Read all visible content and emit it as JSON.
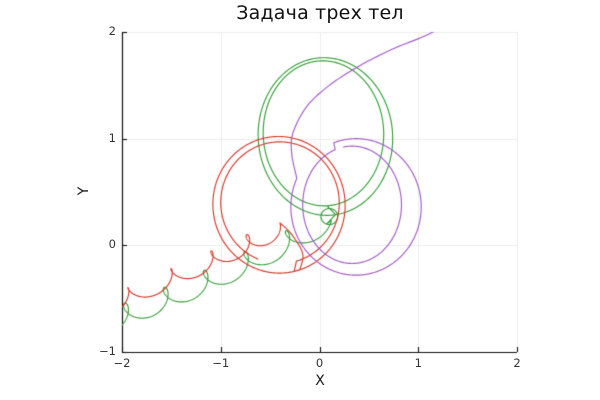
{
  "chart_data": {
    "type": "line",
    "title": "Задача трех тел",
    "xlabel": "X",
    "ylabel": "Y",
    "xlim": [
      -2,
      2
    ],
    "ylim": [
      -1,
      2
    ],
    "grid": true,
    "legend": "none",
    "background": "#ffffff",
    "grid_color": "#ededed",
    "spine_color": "#111111",
    "tick_label_color": "#333333",
    "axes": {
      "x": {
        "ticks": [
          {
            "v": -2,
            "label": "−2"
          },
          {
            "v": -1,
            "label": "−1"
          },
          {
            "v": 0,
            "label": "0"
          },
          {
            "v": 1,
            "label": "1"
          },
          {
            "v": 2,
            "label": "2"
          }
        ]
      },
      "y": {
        "ticks": [
          {
            "v": -1,
            "label": "−1"
          },
          {
            "v": 0,
            "label": "0"
          },
          {
            "v": 1,
            "label": "1"
          },
          {
            "v": 2,
            "label": "2"
          }
        ]
      }
    },
    "series": [
      {
        "name": "body-green",
        "color": "#3a9e3c",
        "line_width": 1.15,
        "segments": [
          {
            "t": "troch",
            "p0": [
              -2.16,
              -0.72
            ],
            "c1": [
              -1.45,
              -0.47
            ],
            "c2": [
              -0.75,
              -0.2
            ],
            "p1": [
              0.02,
              0.2
            ],
            "r": 0.105,
            "turns": 5.3,
            "phase": 270
          },
          {
            "t": "ell",
            "c": [
              0.1,
              0.27
            ],
            "rx": 0.085,
            "ry": 0.075,
            "rot": 0,
            "a0": 250,
            "a1": 610
          },
          {
            "t": "ell",
            "c": [
              0.06,
              1.02
            ],
            "rx": 0.68,
            "ry": 0.74,
            "rot": 8,
            "a0": -90,
            "a1": 270
          },
          {
            "t": "ell",
            "c": [
              0.04,
              1.05
            ],
            "rx": 0.61,
            "ry": 0.68,
            "rot": 3,
            "a0": 270,
            "a1": 630
          }
        ]
      },
      {
        "name": "body-red",
        "color": "#d23b2c",
        "line_width": 1.15,
        "segments": [
          {
            "t": "troch",
            "p0": [
              -2.16,
              -0.58
            ],
            "c1": [
              -1.5,
              -0.3
            ],
            "c2": [
              -0.85,
              -0.06
            ],
            "p1": [
              -0.45,
              0.14
            ],
            "r": 0.085,
            "turns": 4.4,
            "phase": 270
          },
          {
            "t": "pts",
            "pts": [
              [
                -0.4,
                0.21
              ],
              [
                -0.28,
                0.1
              ],
              [
                -0.17,
                -0.08
              ],
              [
                -0.2,
                -0.23
              ]
            ]
          },
          {
            "t": "ell",
            "c": [
              -0.41,
              0.38
            ],
            "rx": 0.67,
            "ry": 0.64,
            "rot": -5,
            "a0": -72,
            "a1": 288
          },
          {
            "t": "ell",
            "c": [
              -0.4,
              0.4
            ],
            "rx": 0.6,
            "ry": 0.57,
            "rot": -2,
            "a0": 288,
            "a1": 610
          }
        ]
      },
      {
        "name": "body-purple",
        "color": "#a25cc6",
        "line_width": 1.15,
        "segments": [
          {
            "t": "ell",
            "c": [
              0.33,
              0.38
            ],
            "rx": 0.5,
            "ry": 0.55,
            "rot": 0,
            "a0": 100,
            "a1": -250
          },
          {
            "t": "ell",
            "c": [
              0.37,
              0.36
            ],
            "rx": 0.66,
            "ry": 0.64,
            "rot": 0,
            "a0": -250,
            "a1": -565
          },
          {
            "t": "pts",
            "pts": [
              [
                -0.23,
                0.63
              ],
              [
                -0.28,
                0.85
              ],
              [
                -0.27,
                1.05
              ],
              [
                -0.13,
                1.3
              ],
              [
                0.1,
                1.5
              ],
              [
                0.4,
                1.68
              ],
              [
                0.74,
                1.84
              ],
              [
                1.06,
                1.96
              ],
              [
                1.32,
                2.08
              ]
            ]
          }
        ]
      }
    ]
  }
}
